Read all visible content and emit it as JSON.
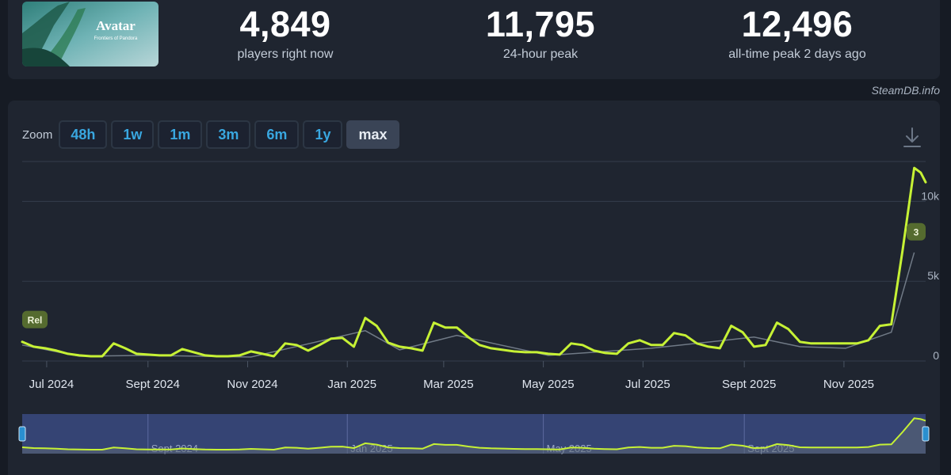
{
  "game": {
    "name": "Avatar",
    "subtitle": "Frontiers of Pandora"
  },
  "stats": [
    {
      "value": "4,849",
      "label": "players right now"
    },
    {
      "value": "11,795",
      "label": "24-hour peak"
    },
    {
      "value": "12,496",
      "label": "all-time peak 2 days ago"
    }
  ],
  "source": "SteamDB.info",
  "zoom": {
    "label": "Zoom",
    "options": [
      "48h",
      "1w",
      "1m",
      "3m",
      "6m",
      "1y",
      "max"
    ],
    "active": "max"
  },
  "icons": {
    "download": "download-icon"
  },
  "colors": {
    "line": "#c6f135",
    "shadow_line": "#707a86",
    "background": "#1f2530",
    "navigator": "#3a4a80"
  },
  "chart_data": {
    "type": "line",
    "xlabel": "",
    "ylabel": "",
    "ylim": [
      0,
      12500
    ],
    "yticks": [
      0,
      5000,
      10000
    ],
    "ytick_labels": [
      "0",
      "5k",
      "10k"
    ],
    "xlim": [
      "2024-06-16",
      "2025-12-21"
    ],
    "xtick_labels": [
      "Jul 2024",
      "Sept 2024",
      "Nov 2024",
      "Jan 2025",
      "Mar 2025",
      "May 2025",
      "Jul 2025",
      "Sept 2025",
      "Nov 2025"
    ],
    "xtick_dates": [
      "2024-07-01",
      "2024-09-01",
      "2024-11-01",
      "2025-01-01",
      "2025-03-01",
      "2025-05-01",
      "2025-07-01",
      "2025-09-01",
      "2025-11-01"
    ],
    "navigator_labels": [
      "Sept 2024",
      "Jan 2025",
      "May 2025",
      "Sept 2025"
    ],
    "navigator_dates": [
      "2024-09-01",
      "2025-01-01",
      "2025-05-01",
      "2025-09-01"
    ],
    "annotations": [
      {
        "text": "Rel",
        "x": "2024-06-16",
        "y": 2600
      },
      {
        "text": "3",
        "x": "2025-12-17",
        "y": 8100
      }
    ],
    "series": [
      {
        "x": [
          "2024-06-16",
          "2024-06-23",
          "2024-06-30",
          "2024-07-07",
          "2024-07-14",
          "2024-07-21",
          "2024-07-28",
          "2024-08-04",
          "2024-08-11",
          "2024-08-18",
          "2024-08-25",
          "2024-09-01",
          "2024-09-08",
          "2024-09-15",
          "2024-09-22",
          "2024-09-29",
          "2024-10-06",
          "2024-10-13",
          "2024-10-20",
          "2024-10-27",
          "2024-11-03",
          "2024-11-10",
          "2024-11-17",
          "2024-11-24",
          "2024-12-01",
          "2024-12-08",
          "2024-12-15",
          "2024-12-22",
          "2024-12-29",
          "2025-01-05",
          "2025-01-12",
          "2025-01-19",
          "2025-01-26",
          "2025-02-02",
          "2025-02-09",
          "2025-02-16",
          "2025-02-23",
          "2025-03-02",
          "2025-03-09",
          "2025-03-16",
          "2025-03-23",
          "2025-03-30",
          "2025-04-06",
          "2025-04-13",
          "2025-04-20",
          "2025-04-27",
          "2025-05-04",
          "2025-05-11",
          "2025-05-18",
          "2025-05-25",
          "2025-06-01",
          "2025-06-08",
          "2025-06-15",
          "2025-06-22",
          "2025-06-29",
          "2025-07-06",
          "2025-07-13",
          "2025-07-20",
          "2025-07-27",
          "2025-08-03",
          "2025-08-10",
          "2025-08-17",
          "2025-08-24",
          "2025-08-31",
          "2025-09-07",
          "2025-09-14",
          "2025-09-21",
          "2025-09-28",
          "2025-10-05",
          "2025-10-12",
          "2025-10-19",
          "2025-10-26",
          "2025-11-02",
          "2025-11-09",
          "2025-11-16",
          "2025-11-23",
          "2025-11-30",
          "2025-12-07",
          "2025-12-14",
          "2025-12-18",
          "2025-12-21"
        ],
        "values": [
          1200,
          900,
          800,
          650,
          450,
          350,
          300,
          300,
          1100,
          800,
          450,
          400,
          350,
          350,
          750,
          550,
          350,
          300,
          300,
          350,
          600,
          450,
          300,
          1100,
          1000,
          650,
          1000,
          1400,
          1450,
          900,
          2700,
          2200,
          1150,
          900,
          800,
          650,
          2400,
          2100,
          2100,
          1500,
          1000,
          800,
          700,
          600,
          550,
          550,
          450,
          400,
          1100,
          1000,
          650,
          500,
          450,
          1100,
          1300,
          1000,
          1000,
          1750,
          1600,
          1100,
          900,
          800,
          2200,
          1800,
          900,
          1000,
          2400,
          2000,
          1200,
          1100,
          1100,
          1100,
          1100,
          1100,
          1300,
          2200,
          2300,
          7000,
          12100,
          11800,
          11200
        ]
      }
    ],
    "shadow_series": {
      "x": [
        "2024-06-16",
        "2024-07-21",
        "2024-09-01",
        "2024-11-03",
        "2025-01-12",
        "2025-02-02",
        "2025-03-09",
        "2025-05-04",
        "2025-07-06",
        "2025-09-07",
        "2025-10-05",
        "2025-11-02",
        "2025-11-30",
        "2025-12-14"
      ],
      "values": [
        1000,
        300,
        350,
        250,
        1900,
        700,
        1600,
        350,
        800,
        1500,
        900,
        800,
        1800,
        6800
      ]
    }
  }
}
